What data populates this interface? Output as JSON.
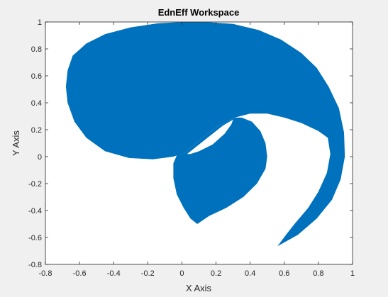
{
  "chart_data": {
    "type": "area",
    "title": "EdnEff Workspace",
    "xlabel": "X Axis",
    "ylabel": "Y Axis",
    "xlim": [
      -0.8,
      1
    ],
    "ylim": [
      -0.8,
      1
    ],
    "x_ticks": [
      -0.8,
      -0.6,
      -0.4,
      -0.2,
      0,
      0.2,
      0.4,
      0.6,
      0.8,
      1
    ],
    "y_ticks": [
      -0.8,
      -0.6,
      -0.4,
      -0.2,
      0,
      0.2,
      0.4,
      0.6,
      0.8,
      1
    ],
    "x_tick_labels": [
      "-0.8",
      "-0.6",
      "-0.4",
      "-0.2",
      "0",
      "0.2",
      "0.4",
      "0.6",
      "0.8",
      "1"
    ],
    "y_tick_labels": [
      "-0.8",
      "-0.6",
      "-0.4",
      "-0.2",
      "0",
      "0.2",
      "0.4",
      "0.6",
      "0.8",
      "1"
    ],
    "grid": false,
    "fill_color": "#0072BD",
    "axes_background": "#ffffff",
    "figure_background": "#f0f0f0",
    "regions": [
      {
        "points": [
          [
            0.56,
            -0.665
          ],
          [
            0.68,
            -0.58
          ],
          [
            0.79,
            -0.46
          ],
          [
            0.88,
            -0.32
          ],
          [
            0.93,
            -0.17
          ],
          [
            0.955,
            0.0
          ],
          [
            0.95,
            0.18
          ],
          [
            0.92,
            0.36
          ],
          [
            0.86,
            0.52
          ],
          [
            0.79,
            0.66
          ],
          [
            0.7,
            0.77
          ],
          [
            0.58,
            0.87
          ],
          [
            0.45,
            0.94
          ],
          [
            0.3,
            0.985
          ],
          [
            0.14,
            1.0
          ],
          [
            0.0,
            1.0
          ],
          [
            -0.14,
            0.99
          ],
          [
            -0.3,
            0.96
          ],
          [
            -0.45,
            0.91
          ],
          [
            -0.56,
            0.84
          ],
          [
            -0.64,
            0.75
          ],
          [
            -0.67,
            0.64
          ],
          [
            -0.68,
            0.52
          ],
          [
            -0.67,
            0.4
          ],
          [
            -0.63,
            0.26
          ],
          [
            -0.56,
            0.14
          ],
          [
            -0.45,
            0.04
          ],
          [
            -0.31,
            -0.01
          ],
          [
            -0.17,
            -0.02
          ],
          [
            -0.05,
            0.0
          ],
          [
            0.02,
            0.03
          ],
          [
            0.1,
            0.12
          ],
          [
            0.2,
            0.22
          ],
          [
            0.31,
            0.29
          ],
          [
            0.4,
            0.32
          ],
          [
            0.5,
            0.32
          ],
          [
            0.6,
            0.29
          ],
          [
            0.7,
            0.25
          ],
          [
            0.8,
            0.19
          ],
          [
            0.855,
            0.14
          ],
          [
            0.87,
            0.02
          ],
          [
            0.85,
            -0.12
          ],
          [
            0.8,
            -0.26
          ],
          [
            0.74,
            -0.38
          ],
          [
            0.66,
            -0.5
          ],
          [
            0.61,
            -0.58
          ],
          [
            0.56,
            -0.665
          ]
        ]
      },
      {
        "points": [
          [
            0.02,
            0.03
          ],
          [
            0.1,
            0.12
          ],
          [
            0.2,
            0.22
          ],
          [
            0.31,
            0.29
          ],
          [
            0.35,
            0.29
          ],
          [
            0.41,
            0.26
          ],
          [
            0.46,
            0.19
          ],
          [
            0.49,
            0.1
          ],
          [
            0.5,
            0.0
          ],
          [
            0.49,
            -0.09
          ],
          [
            0.44,
            -0.2
          ],
          [
            0.36,
            -0.3
          ],
          [
            0.26,
            -0.38
          ],
          [
            0.16,
            -0.44
          ],
          [
            0.09,
            -0.5
          ],
          [
            0.05,
            -0.46
          ],
          [
            0.01,
            -0.38
          ],
          [
            -0.03,
            -0.28
          ],
          [
            -0.05,
            -0.16
          ],
          [
            -0.05,
            -0.05
          ],
          [
            -0.03,
            0.01
          ],
          [
            0.02,
            0.03
          ]
        ]
      }
    ],
    "hole": {
      "points": [
        [
          0.03,
          0.02
        ],
        [
          0.08,
          0.07
        ],
        [
          0.16,
          0.15
        ],
        [
          0.24,
          0.23
        ],
        [
          0.3,
          0.275
        ],
        [
          0.29,
          0.24
        ],
        [
          0.25,
          0.17
        ],
        [
          0.18,
          0.09
        ],
        [
          0.1,
          0.04
        ],
        [
          0.05,
          0.02
        ],
        [
          0.03,
          0.02
        ]
      ]
    }
  }
}
